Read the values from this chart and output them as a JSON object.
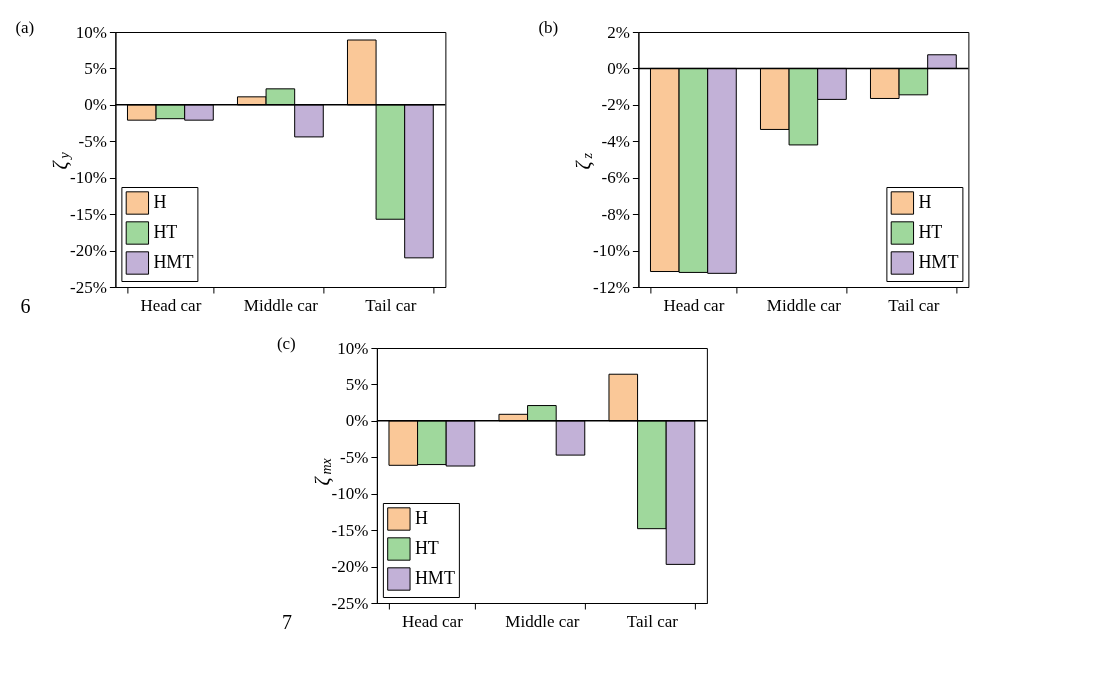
{
  "chart_data": [
    {
      "type": "bar",
      "title": "(a)",
      "ylabel": "ζ$_{y}$",
      "categories": [
        "Head car",
        "Middle car",
        "Tail car"
      ],
      "series": [
        {
          "name": "H",
          "color": "#fac898",
          "values": [
            -2.1,
            1.1,
            8.9
          ]
        },
        {
          "name": "HT",
          "color": "#9fd89c",
          "values": [
            -1.9,
            2.2,
            -15.7
          ]
        },
        {
          "name": "HMT",
          "color": "#c2b1d7",
          "values": [
            -2.1,
            -4.4,
            -21.0
          ]
        }
      ],
      "ylim": [
        -25,
        10
      ],
      "yticks": [
        {
          "value": -25,
          "label": "-25%"
        },
        {
          "value": -20,
          "label": "-20%"
        },
        {
          "value": -15,
          "label": "-15%"
        },
        {
          "value": -10,
          "label": "-10%"
        },
        {
          "value": -5,
          "label": "-5%"
        },
        {
          "value": 0,
          "label": "0%"
        },
        {
          "value": 5,
          "label": "5%"
        },
        {
          "value": 10,
          "label": "10%"
        }
      ],
      "ref_lines": [
        {
          "axis": "y",
          "value": 0
        }
      ],
      "legend": "bottom left",
      "annotations": [
        "6"
      ]
    },
    {
      "type": "bar",
      "title": "(b)",
      "ylabel": "ζ$_{z}$",
      "categories": [
        "Head car",
        "Middle car",
        "Tail car"
      ],
      "series": [
        {
          "name": "H",
          "color": "#fac898",
          "values": [
            -11.15,
            -3.35,
            -1.65
          ]
        },
        {
          "name": "HT",
          "color": "#9fd89c",
          "values": [
            -11.2,
            -4.2,
            -1.45
          ]
        },
        {
          "name": "HMT",
          "color": "#c2b1d7",
          "values": [
            -11.25,
            -1.7,
            0.75
          ]
        }
      ],
      "ylim": [
        -12,
        2
      ],
      "yticks": [
        {
          "value": -12,
          "label": "-12%"
        },
        {
          "value": -10,
          "label": "-10%"
        },
        {
          "value": -8,
          "label": "-8%"
        },
        {
          "value": -6,
          "label": "-6%"
        },
        {
          "value": -4,
          "label": "-4%"
        },
        {
          "value": -2,
          "label": "-2%"
        },
        {
          "value": 0,
          "label": "0%"
        },
        {
          "value": 2,
          "label": "2%"
        }
      ],
      "ref_lines": [
        {
          "axis": "y",
          "value": 0
        }
      ],
      "legend": "bottom right"
    },
    {
      "type": "bar",
      "title": "(c)",
      "ylabel": "ζ$_{mx}$",
      "categories": [
        "Head car",
        "Middle car",
        "Tail car"
      ],
      "series": [
        {
          "name": "H",
          "color": "#fac898",
          "values": [
            -6.1,
            0.9,
            6.4
          ]
        },
        {
          "name": "HT",
          "color": "#9fd89c",
          "values": [
            -6.0,
            2.1,
            -14.8
          ]
        },
        {
          "name": "HMT",
          "color": "#c2b1d7",
          "values": [
            -6.2,
            -4.7,
            -19.7
          ]
        }
      ],
      "ylim": [
        -25,
        10
      ],
      "yticks": [
        {
          "value": -25,
          "label": "-25%"
        },
        {
          "value": -20,
          "label": "-20%"
        },
        {
          "value": -15,
          "label": "-15%"
        },
        {
          "value": -10,
          "label": "-10%"
        },
        {
          "value": -5,
          "label": "-5%"
        },
        {
          "value": 0,
          "label": "0%"
        },
        {
          "value": 5,
          "label": "5%"
        },
        {
          "value": 10,
          "label": "10%"
        }
      ],
      "ref_lines": [
        {
          "axis": "y",
          "value": 0
        }
      ],
      "legend": "bottom left",
      "annotations": [
        "7"
      ]
    }
  ]
}
